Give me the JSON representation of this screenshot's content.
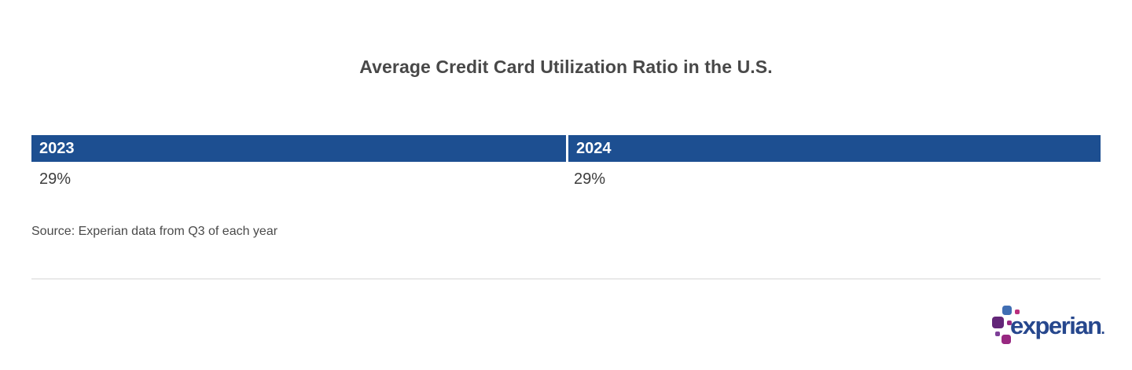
{
  "colors": {
    "header-blue": "#1d4f91",
    "title-gray": "#484848",
    "text-gray": "#3d3d3d",
    "source-gray": "#4a4a4a",
    "divider-gray": "#e9e9e9",
    "logo-blue": "#406eb3",
    "logo-purple": "#632678",
    "logo-magenta": "#982881",
    "logo-pink": "#ba2f7d",
    "logo-violet": "#7d3f98",
    "logo-text": "#26478d"
  },
  "title": "Average Credit Card Utilization Ratio in the U.S.",
  "chart_data": {
    "type": "table",
    "title": "Average Credit Card Utilization Ratio in the U.S.",
    "categories": [
      "2023",
      "2024"
    ],
    "values": [
      29,
      29
    ],
    "display_values": [
      "29%",
      "29%"
    ],
    "unit": "%",
    "source": "Source: Experian data from Q3 of each year",
    "layout": {
      "header_style": "solid blue bar, white bold year labels, thin white column divider",
      "columns": 2,
      "grid": false
    }
  },
  "source_note": "Source: Experian data from Q3 of each year",
  "logo": {
    "name": "experian-logo",
    "text": "experian",
    "trademark": "."
  }
}
